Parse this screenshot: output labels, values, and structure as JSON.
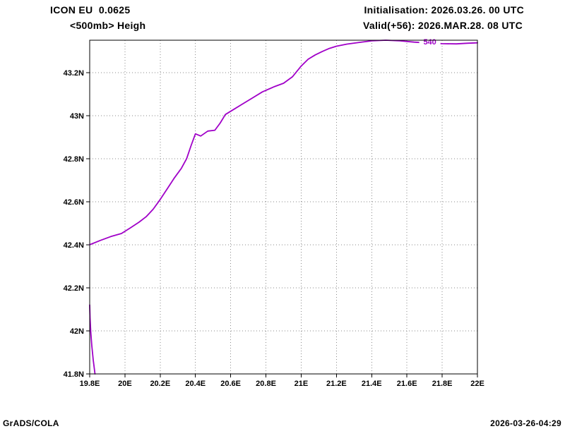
{
  "header": {
    "model_line": "ICON EU  0.0625",
    "level_line": "<500mb> Heigh",
    "init_line": "Initialisation: 2026.03.26. 00 UTC",
    "valid_line": "Valid(+56): 2026.MAR.28. 08 UTC"
  },
  "footer": {
    "left": "GrADS/COLA",
    "right": "2026-03-26-04:29"
  },
  "chart_data": {
    "type": "line",
    "title": "<500mb> Heigh",
    "xlabel": "",
    "ylabel": "",
    "xlim": [
      19.8,
      22.0
    ],
    "ylim": [
      41.8,
      43.35
    ],
    "grid": "dotted",
    "x_ticks": [
      19.8,
      20.0,
      20.2,
      20.4,
      20.6,
      20.8,
      21.0,
      21.2,
      21.4,
      21.6,
      21.8,
      22.0
    ],
    "x_tick_labels": [
      "19.8E",
      "20E",
      "20.2E",
      "20.4E",
      "20.6E",
      "20.8E",
      "21E",
      "21.2E",
      "21.4E",
      "21.6E",
      "21.8E",
      "22E"
    ],
    "y_ticks": [
      41.8,
      42.0,
      42.2,
      42.4,
      42.6,
      42.8,
      43.0,
      43.2
    ],
    "y_tick_labels": [
      "41.8N",
      "42N",
      "42.2N",
      "42.4N",
      "42.6N",
      "42.8N",
      "43N",
      "43.2N"
    ],
    "contour_color": "#a000c8",
    "contour_label": "540",
    "contour_label_pos": [
      21.73,
      43.343
    ],
    "series": [
      {
        "name": "contour-540-main",
        "points": [
          [
            19.8,
            42.4
          ],
          [
            19.86,
            42.42
          ],
          [
            19.92,
            42.438
          ],
          [
            19.98,
            42.452
          ],
          [
            20.03,
            42.478
          ],
          [
            20.08,
            42.505
          ],
          [
            20.12,
            42.53
          ],
          [
            20.16,
            42.565
          ],
          [
            20.2,
            42.61
          ],
          [
            20.24,
            42.66
          ],
          [
            20.28,
            42.71
          ],
          [
            20.32,
            42.755
          ],
          [
            20.35,
            42.8
          ],
          [
            20.375,
            42.86
          ],
          [
            20.4,
            42.915
          ],
          [
            20.43,
            42.905
          ],
          [
            20.47,
            42.928
          ],
          [
            20.51,
            42.932
          ],
          [
            20.54,
            42.965
          ],
          [
            20.57,
            43.005
          ],
          [
            20.61,
            43.025
          ],
          [
            20.66,
            43.05
          ],
          [
            20.72,
            43.08
          ],
          [
            20.78,
            43.11
          ],
          [
            20.85,
            43.135
          ],
          [
            20.9,
            43.15
          ],
          [
            20.95,
            43.18
          ],
          [
            21.0,
            43.23
          ],
          [
            21.04,
            43.262
          ],
          [
            21.08,
            43.282
          ],
          [
            21.12,
            43.298
          ],
          [
            21.16,
            43.312
          ],
          [
            21.2,
            43.322
          ],
          [
            21.26,
            43.332
          ],
          [
            21.33,
            43.34
          ],
          [
            21.4,
            43.347
          ],
          [
            21.48,
            43.35
          ],
          [
            21.56,
            43.347
          ],
          [
            21.64,
            43.341
          ],
          [
            21.72,
            43.337
          ],
          [
            21.8,
            43.334
          ],
          [
            21.88,
            43.333
          ],
          [
            21.94,
            43.336
          ],
          [
            22.0,
            43.338
          ]
        ]
      },
      {
        "name": "contour-540-southwest",
        "points": [
          [
            19.8,
            42.12
          ],
          [
            19.802,
            42.06
          ],
          [
            19.806,
            41.995
          ],
          [
            19.812,
            41.93
          ],
          [
            19.82,
            41.865
          ],
          [
            19.83,
            41.8
          ]
        ]
      }
    ]
  }
}
